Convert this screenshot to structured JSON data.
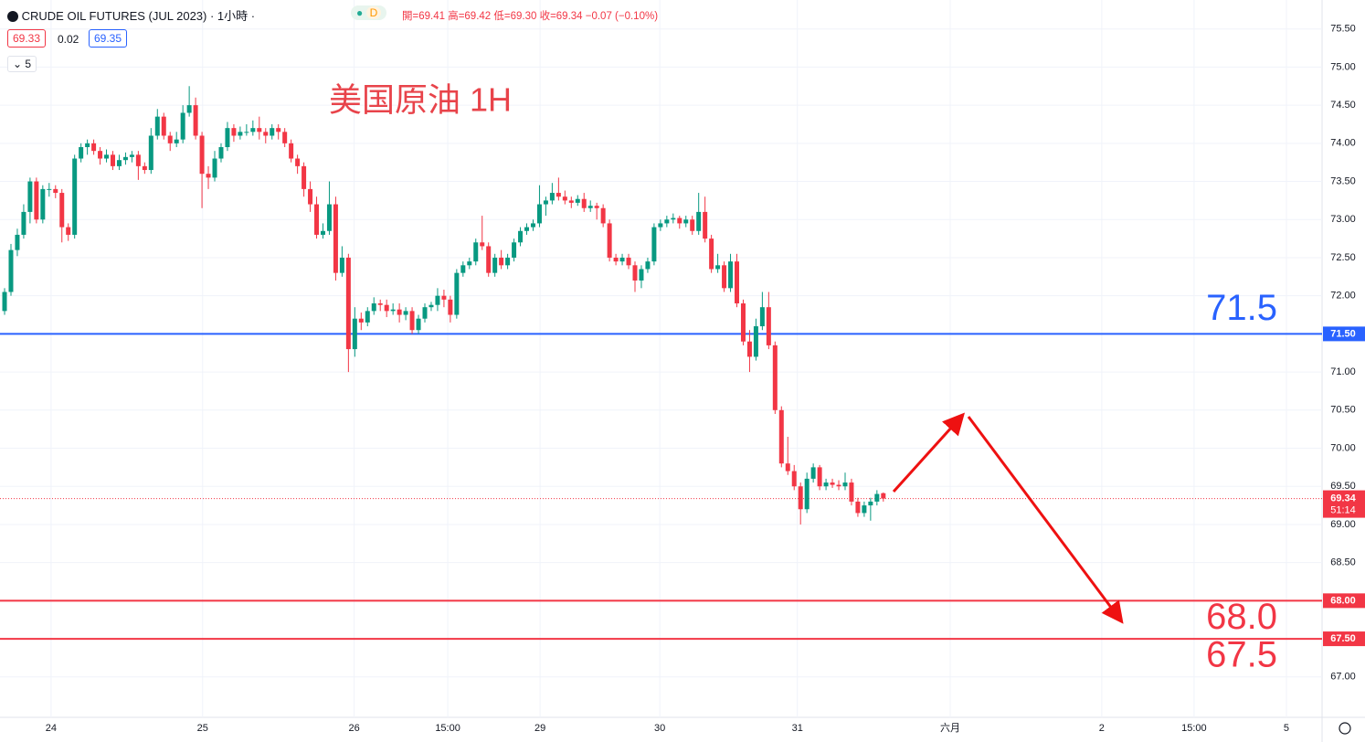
{
  "header": {
    "symbol": "CRUDE OIL FUTURES (JUL 2023) · 1小時 ·",
    "badge": "D",
    "ohlc": "開=69.41 高=69.42 低=69.30 收=69.34 −0.07 (−0.10%)",
    "bid": "69.33",
    "spread": "0.02",
    "ask": "69.35",
    "indicators": "5"
  },
  "chart_data": {
    "type": "candlestick",
    "annotation": "美国原油 1H",
    "up_color": "#089981",
    "down_color": "#f23645",
    "grid": true,
    "x": [
      0,
      1,
      2,
      3,
      4,
      5,
      6,
      7,
      8,
      9,
      10,
      11,
      12,
      13,
      14,
      15,
      16,
      17,
      18,
      19,
      20,
      21,
      22,
      23,
      24,
      25,
      26,
      27,
      28,
      29,
      30,
      31,
      32,
      33,
      34,
      35,
      36,
      37,
      38,
      39,
      40,
      41,
      42,
      43,
      44,
      45,
      46,
      47,
      48,
      49,
      50,
      51,
      52,
      53,
      54,
      55,
      56,
      57,
      58,
      59,
      60,
      61,
      62,
      63,
      64,
      65,
      66,
      67,
      68,
      69,
      70,
      71,
      72,
      73,
      74,
      75,
      76,
      77,
      78,
      79,
      80,
      81,
      82,
      83,
      84,
      85,
      86,
      87,
      88,
      89,
      90,
      91,
      92,
      93,
      94,
      95,
      96,
      97,
      98,
      99,
      100,
      101,
      102,
      103,
      104,
      105,
      106,
      107,
      108,
      109,
      110,
      111,
      112,
      113,
      114,
      115,
      116,
      117,
      118,
      119,
      120,
      121,
      122,
      123,
      124,
      125,
      126,
      127,
      128,
      129,
      130,
      131,
      132,
      133,
      134,
      135,
      136,
      137,
      138
    ],
    "open": [
      71.8,
      72.05,
      72.6,
      72.8,
      73.1,
      73.5,
      73.0,
      73.4,
      73.4,
      73.35,
      72.9,
      72.8,
      73.8,
      73.95,
      74.0,
      73.9,
      73.8,
      73.85,
      73.7,
      73.78,
      73.82,
      73.85,
      73.7,
      73.65,
      74.1,
      74.35,
      74.1,
      74.0,
      74.05,
      74.4,
      74.5,
      74.1,
      73.6,
      73.55,
      73.8,
      73.95,
      74.2,
      74.1,
      74.15,
      74.15,
      74.2,
      74.15,
      74.1,
      74.2,
      74.15,
      74.0,
      73.8,
      73.7,
      73.4,
      73.2,
      72.8,
      72.85,
      73.2,
      72.3,
      72.5,
      71.3,
      71.7,
      71.65,
      71.8,
      71.9,
      71.88,
      71.8,
      71.82,
      71.75,
      71.8,
      71.55,
      71.7,
      71.85,
      71.88,
      72.0,
      71.95,
      71.75,
      72.3,
      72.4,
      72.45,
      72.7,
      72.65,
      72.3,
      72.5,
      72.4,
      72.5,
      72.7,
      72.85,
      72.9,
      72.95,
      73.2,
      73.25,
      73.35,
      73.3,
      73.25,
      73.22,
      73.27,
      73.15,
      73.18,
      73.15,
      72.95,
      72.5,
      72.45,
      72.5,
      72.4,
      72.2,
      72.35,
      72.45,
      72.9,
      72.95,
      73.0,
      73.02,
      72.95,
      73.0,
      72.85,
      73.1,
      72.75,
      72.35,
      72.4,
      72.1,
      72.45,
      71.9,
      71.4,
      71.2,
      71.6,
      71.85,
      71.35,
      70.5,
      69.8,
      69.7,
      69.5,
      69.2,
      69.6,
      69.75,
      69.5,
      69.55,
      69.52,
      69.5,
      69.55,
      69.3,
      69.15,
      69.25,
      69.3,
      69.41
    ],
    "high": [
      72.1,
      72.68,
      72.88,
      73.2,
      73.55,
      73.55,
      73.45,
      73.48,
      73.45,
      73.4,
      72.95,
      73.85,
      74.0,
      74.05,
      74.05,
      73.95,
      73.92,
      73.9,
      73.85,
      73.88,
      73.9,
      73.9,
      73.75,
      74.2,
      74.45,
      74.4,
      74.15,
      74.15,
      74.5,
      74.75,
      74.6,
      74.15,
      73.7,
      73.9,
      74.0,
      74.28,
      74.25,
      74.22,
      74.25,
      74.3,
      74.35,
      74.2,
      74.25,
      74.25,
      74.2,
      74.05,
      73.85,
      73.75,
      73.5,
      73.3,
      72.95,
      73.5,
      73.3,
      72.65,
      72.55,
      71.85,
      71.78,
      71.85,
      71.98,
      71.95,
      71.95,
      71.9,
      71.9,
      71.85,
      71.85,
      71.75,
      71.9,
      71.92,
      72.1,
      72.08,
      72.0,
      72.35,
      72.45,
      72.5,
      72.75,
      73.05,
      72.7,
      72.55,
      72.6,
      72.55,
      72.75,
      72.9,
      72.95,
      73.0,
      73.45,
      73.3,
      73.48,
      73.55,
      73.38,
      73.3,
      73.32,
      73.35,
      73.25,
      73.22,
      73.2,
      73.0,
      72.55,
      72.55,
      72.55,
      72.45,
      72.4,
      72.5,
      72.95,
      73.0,
      73.05,
      73.08,
      73.05,
      73.05,
      73.05,
      73.35,
      73.3,
      72.8,
      72.55,
      72.45,
      72.55,
      72.55,
      71.95,
      71.55,
      71.7,
      72.05,
      72.05,
      71.4,
      70.55,
      70.15,
      69.78,
      69.55,
      69.68,
      69.8,
      69.78,
      69.6,
      69.6,
      69.58,
      69.68,
      69.6,
      69.35,
      69.3,
      69.35,
      69.45,
      69.42
    ],
    "low": [
      71.75,
      72.0,
      72.52,
      72.75,
      72.95,
      72.95,
      72.95,
      73.3,
      73.28,
      72.7,
      72.72,
      72.75,
      73.75,
      73.85,
      73.85,
      73.72,
      73.75,
      73.65,
      73.65,
      73.72,
      73.75,
      73.52,
      73.6,
      73.6,
      74.05,
      74.05,
      73.9,
      73.95,
      74.0,
      74.35,
      74.05,
      73.15,
      73.4,
      73.5,
      73.75,
      73.9,
      74.02,
      74.05,
      74.1,
      74.1,
      74.05,
      74.0,
      74.05,
      74.05,
      73.95,
      73.75,
      73.6,
      73.3,
      73.1,
      72.75,
      72.75,
      72.8,
      72.2,
      72.25,
      71.0,
      71.2,
      71.55,
      71.6,
      71.75,
      71.8,
      71.72,
      71.75,
      71.65,
      71.68,
      71.5,
      71.5,
      71.65,
      71.8,
      71.8,
      71.85,
      71.65,
      71.7,
      72.25,
      72.35,
      72.4,
      72.6,
      72.25,
      72.25,
      72.35,
      72.35,
      72.45,
      72.65,
      72.8,
      72.85,
      72.9,
      73.05,
      73.2,
      73.25,
      73.2,
      73.15,
      73.18,
      73.1,
      73.1,
      73.0,
      72.9,
      72.45,
      72.4,
      72.4,
      72.35,
      72.05,
      72.1,
      72.3,
      72.4,
      72.85,
      72.9,
      72.95,
      72.88,
      72.9,
      72.8,
      72.8,
      72.7,
      72.3,
      72.3,
      72.05,
      72.05,
      71.85,
      71.35,
      71.0,
      71.15,
      71.55,
      71.3,
      70.45,
      69.75,
      69.65,
      69.45,
      69.0,
      69.15,
      69.55,
      69.45,
      69.45,
      69.48,
      69.45,
      69.45,
      69.25,
      69.1,
      69.1,
      69.05,
      69.25,
      69.3
    ],
    "close": [
      72.05,
      72.6,
      72.8,
      73.1,
      73.5,
      73.0,
      73.4,
      73.4,
      73.35,
      72.9,
      72.8,
      73.8,
      73.95,
      74.0,
      73.9,
      73.8,
      73.85,
      73.7,
      73.78,
      73.82,
      73.85,
      73.7,
      73.65,
      74.1,
      74.35,
      74.1,
      74.0,
      74.05,
      74.4,
      74.5,
      74.1,
      73.6,
      73.55,
      73.8,
      73.95,
      74.2,
      74.1,
      74.15,
      74.15,
      74.2,
      74.15,
      74.1,
      74.2,
      74.15,
      74.0,
      73.8,
      73.7,
      73.4,
      73.2,
      72.8,
      72.85,
      73.2,
      72.3,
      72.5,
      71.3,
      71.7,
      71.65,
      71.8,
      71.9,
      71.88,
      71.8,
      71.82,
      71.75,
      71.8,
      71.55,
      71.7,
      71.85,
      71.88,
      72.0,
      71.95,
      71.75,
      72.3,
      72.4,
      72.45,
      72.7,
      72.65,
      72.3,
      72.5,
      72.4,
      72.5,
      72.7,
      72.85,
      72.9,
      72.95,
      73.2,
      73.25,
      73.35,
      73.3,
      73.25,
      73.22,
      73.27,
      73.15,
      73.18,
      73.15,
      72.95,
      72.5,
      72.45,
      72.5,
      72.4,
      72.2,
      72.35,
      72.45,
      72.9,
      72.95,
      73.0,
      73.02,
      72.95,
      73.0,
      72.85,
      73.1,
      72.75,
      72.35,
      72.4,
      72.1,
      72.45,
      71.9,
      71.4,
      71.2,
      71.6,
      71.85,
      71.35,
      70.5,
      69.8,
      69.7,
      69.5,
      69.2,
      69.6,
      69.75,
      69.5,
      69.55,
      69.52,
      69.5,
      69.55,
      69.3,
      69.15,
      69.25,
      69.3,
      69.4,
      69.34
    ],
    "xlim": [
      -0.72,
      206.9
    ],
    "xticks": [
      {
        "value": 7.3,
        "label": "24"
      },
      {
        "value": 31.1,
        "label": "25"
      },
      {
        "value": 54.9,
        "label": "26"
      },
      {
        "value": 69.6,
        "label": "15:00"
      },
      {
        "value": 84.1,
        "label": "29"
      },
      {
        "value": 102.9,
        "label": "30"
      },
      {
        "value": 124.5,
        "label": "31"
      },
      {
        "value": 148.5,
        "label": "六月"
      },
      {
        "value": 172.3,
        "label": "2"
      },
      {
        "value": 186.8,
        "label": "15:00"
      },
      {
        "value": 201.3,
        "label": "5"
      }
    ],
    "ylim": [
      66.47,
      75.88
    ],
    "yticks": [
      {
        "value": 67,
        "label": "67.00"
      },
      {
        "value": 67.5,
        "label": "67.50"
      },
      {
        "value": 68,
        "label": "68.00"
      },
      {
        "value": 68.5,
        "label": "68.50"
      },
      {
        "value": 69,
        "label": "69.00"
      },
      {
        "value": 69.5,
        "label": "69.50"
      },
      {
        "value": 70,
        "label": "70.00"
      },
      {
        "value": 70.5,
        "label": "70.50"
      },
      {
        "value": 71,
        "label": "71.00"
      },
      {
        "value": 71.5,
        "label": "71.50"
      },
      {
        "value": 72,
        "label": "72.00"
      },
      {
        "value": 72.5,
        "label": "72.50"
      },
      {
        "value": 73,
        "label": "73.00"
      },
      {
        "value": 73.5,
        "label": "73.50"
      },
      {
        "value": 74,
        "label": "74.00"
      },
      {
        "value": 74.5,
        "label": "74.50"
      },
      {
        "value": 75,
        "label": "75.00"
      },
      {
        "value": 75.5,
        "label": "75.50"
      }
    ],
    "levels": [
      {
        "value": 71.5,
        "label": "71.50",
        "text": "71.5",
        "color": "#2962ff"
      },
      {
        "value": 68,
        "label": "68.00",
        "text": "68.0",
        "color": "#f23645"
      },
      {
        "value": 67.5,
        "label": "67.50",
        "text": "67.5",
        "color": "#f23645"
      }
    ],
    "last_price": {
      "value": 69.34,
      "label": "69.34",
      "countdown": "51:14",
      "color": "#f23645"
    }
  }
}
